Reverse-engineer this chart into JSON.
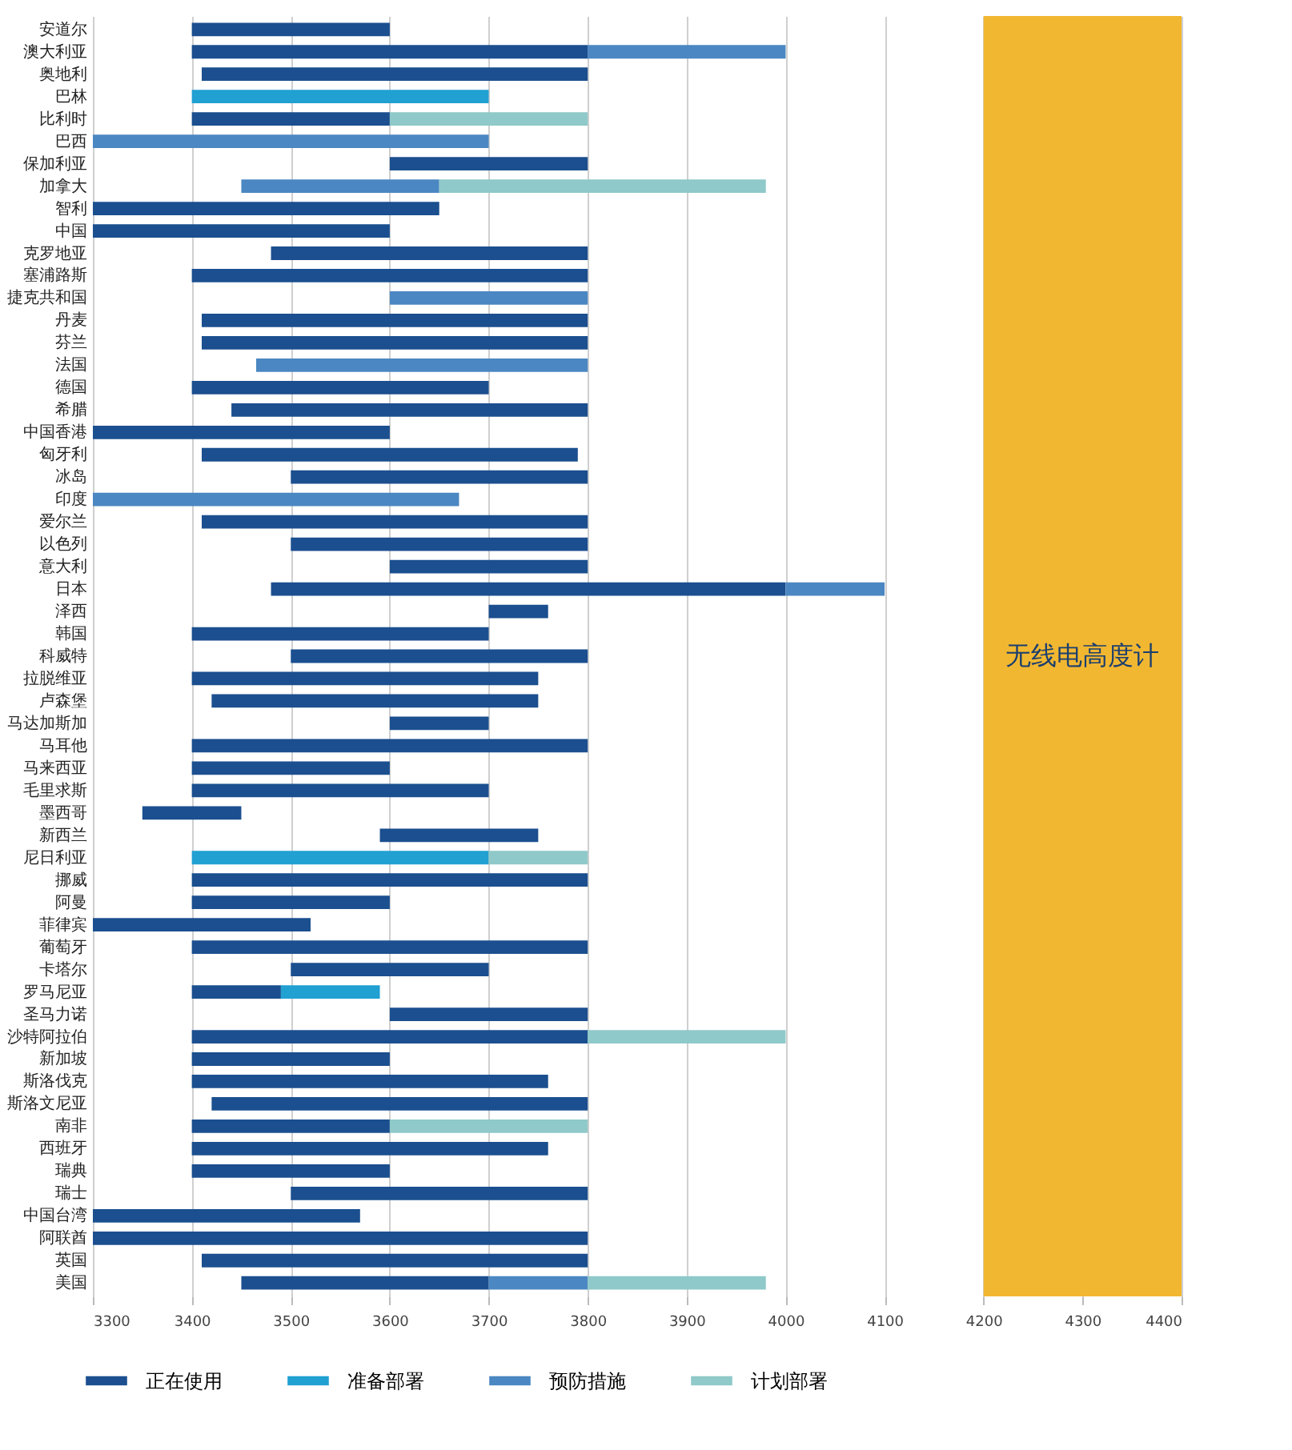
{
  "chart_data": {
    "type": "bar",
    "orientation": "horizontal",
    "categories": [
      "安道尔",
      "澳大利亚",
      "奥地利",
      "巴林",
      "比利时",
      "巴西",
      "保加利亚",
      "加拿大",
      "智利",
      "中国",
      "克罗地亚",
      "塞浦路斯",
      "捷克共和国",
      "丹麦",
      "芬兰",
      "法国",
      "德国",
      "希腊",
      "中国香港",
      "匈牙利",
      "冰岛",
      "印度",
      "爱尔兰",
      "以色列",
      "意大利",
      "日本",
      "泽西",
      "韩国",
      "科威特",
      "拉脱维亚",
      "卢森堡",
      "马达加斯加",
      "马耳他",
      "马来西亚",
      "毛里求斯",
      "墨西哥",
      "新西兰",
      "尼日利亚",
      "挪威",
      "阿曼",
      "菲律宾",
      "葡萄牙",
      "卡塔尔",
      "罗马尼亚",
      "圣马力诺",
      "沙特阿拉伯",
      "新加坡",
      "斯洛伐克",
      "斯洛文尼亚",
      "南非",
      "西班牙",
      "瑞典",
      "瑞士",
      "中国台湾",
      "阿联酋",
      "英国",
      "美国"
    ],
    "series": [
      {
        "name": "正在使用",
        "color": "#1b4f8f",
        "base": [
          3400,
          3400,
          3410,
          null,
          3400,
          null,
          3600,
          null,
          3300,
          3300,
          3480,
          3400,
          null,
          3410,
          3410,
          null,
          3400,
          3440,
          3300,
          3410,
          3500,
          null,
          3410,
          3500,
          3600,
          3480,
          3700,
          3400,
          3500,
          3400,
          3420,
          3600,
          3400,
          3400,
          3400,
          3350,
          3590,
          null,
          3400,
          3400,
          3300,
          3400,
          3500,
          3400,
          3600,
          3400,
          3400,
          3400,
          3420,
          3400,
          3400,
          3400,
          3500,
          3300,
          3300,
          3410,
          3450
        ],
        "values": [
          200,
          400,
          390,
          null,
          200,
          null,
          200,
          null,
          350,
          300,
          320,
          400,
          null,
          390,
          390,
          null,
          300,
          360,
          300,
          380,
          300,
          null,
          390,
          300,
          200,
          520,
          60,
          300,
          300,
          350,
          330,
          100,
          400,
          200,
          300,
          100,
          160,
          null,
          400,
          200,
          220,
          400,
          200,
          90,
          200,
          400,
          200,
          360,
          380,
          200,
          360,
          200,
          300,
          270,
          500,
          390,
          250
        ]
      },
      {
        "name": "准备部署",
        "color": "#21a0d2",
        "base": [
          null,
          null,
          null,
          3400,
          null,
          null,
          null,
          null,
          null,
          null,
          null,
          null,
          null,
          null,
          null,
          null,
          null,
          null,
          null,
          null,
          null,
          null,
          null,
          null,
          null,
          null,
          null,
          null,
          null,
          null,
          null,
          null,
          null,
          null,
          null,
          null,
          null,
          3400,
          null,
          null,
          null,
          null,
          null,
          3490,
          null,
          null,
          null,
          null,
          null,
          null,
          null,
          null,
          null,
          null,
          null,
          null,
          null
        ],
        "values": [
          null,
          null,
          null,
          300,
          null,
          null,
          null,
          null,
          null,
          null,
          null,
          null,
          null,
          null,
          null,
          null,
          null,
          null,
          null,
          null,
          null,
          null,
          null,
          null,
          null,
          null,
          null,
          null,
          null,
          null,
          null,
          null,
          null,
          null,
          null,
          null,
          null,
          300,
          null,
          null,
          null,
          null,
          null,
          100,
          null,
          null,
          null,
          null,
          null,
          null,
          null,
          null,
          null,
          null,
          null,
          null,
          null
        ]
      },
      {
        "name": "预防措施",
        "color": "#4b87c2",
        "base": [
          null,
          3800,
          null,
          null,
          null,
          3300,
          null,
          3450,
          null,
          null,
          null,
          null,
          3600,
          null,
          null,
          3465,
          null,
          null,
          null,
          null,
          null,
          3300,
          null,
          null,
          null,
          4000,
          null,
          null,
          null,
          null,
          null,
          null,
          null,
          null,
          null,
          null,
          null,
          null,
          null,
          null,
          null,
          null,
          null,
          null,
          null,
          null,
          null,
          null,
          null,
          null,
          null,
          null,
          null,
          null,
          null,
          null,
          3700
        ],
        "values": [
          null,
          200,
          null,
          null,
          null,
          400,
          null,
          200,
          null,
          null,
          null,
          null,
          200,
          null,
          null,
          335,
          null,
          null,
          null,
          null,
          null,
          370,
          null,
          null,
          null,
          100,
          null,
          null,
          null,
          null,
          null,
          null,
          null,
          null,
          null,
          null,
          null,
          null,
          null,
          null,
          null,
          null,
          null,
          null,
          null,
          null,
          null,
          null,
          null,
          null,
          null,
          null,
          null,
          null,
          null,
          null,
          100
        ]
      },
      {
        "name": "计划部署",
        "color": "#8fc9c9",
        "base": [
          null,
          null,
          null,
          null,
          3600,
          null,
          null,
          3650,
          null,
          null,
          null,
          null,
          null,
          null,
          null,
          null,
          null,
          null,
          null,
          null,
          null,
          null,
          null,
          null,
          null,
          null,
          null,
          null,
          null,
          null,
          null,
          null,
          null,
          null,
          null,
          null,
          null,
          3700,
          null,
          null,
          null,
          null,
          null,
          null,
          null,
          3800,
          null,
          null,
          null,
          3600,
          null,
          null,
          null,
          null,
          null,
          null,
          3800
        ],
        "values": [
          null,
          null,
          null,
          null,
          200,
          null,
          null,
          330,
          null,
          null,
          null,
          null,
          null,
          null,
          null,
          null,
          null,
          null,
          null,
          null,
          null,
          null,
          null,
          null,
          null,
          null,
          null,
          null,
          null,
          null,
          null,
          null,
          null,
          null,
          null,
          null,
          null,
          100,
          null,
          null,
          null,
          null,
          null,
          null,
          null,
          200,
          null,
          null,
          null,
          200,
          null,
          null,
          null,
          null,
          null,
          null,
          180
        ]
      }
    ],
    "xlim": [
      3300,
      4400
    ],
    "xticks": [
      3300,
      3400,
      3500,
      3600,
      3700,
      3800,
      3900,
      4000,
      4100,
      4200,
      4300,
      4400
    ],
    "bands": [
      {
        "axis": "x",
        "from": 4200,
        "to": 4400,
        "label": "无线电高度计",
        "color": "#f2b731"
      }
    ],
    "grid": "x",
    "legend": "bottom"
  }
}
